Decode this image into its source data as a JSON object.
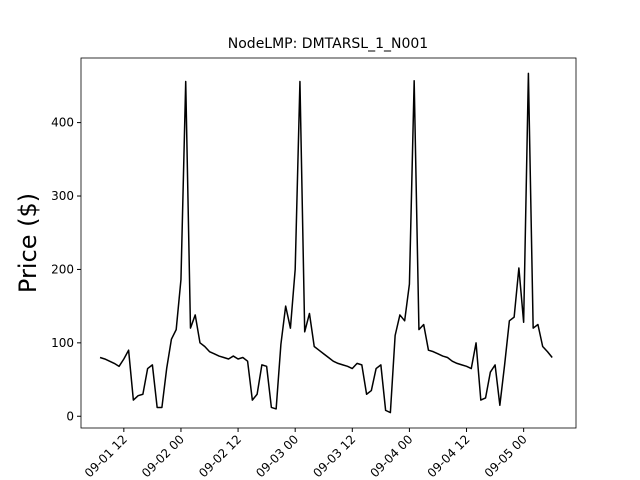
{
  "chart_data": {
    "type": "line",
    "title": "NodeLMP: DMTARSL_1_N001",
    "y_label": "Price ($)",
    "x": [
      "09-01 07",
      "09-01 08",
      "09-01 09",
      "09-01 10",
      "09-01 11",
      "09-01 12",
      "09-01 13",
      "09-01 14",
      "09-01 15",
      "09-01 16",
      "09-01 17",
      "09-01 18",
      "09-01 19",
      "09-01 20",
      "09-01 21",
      "09-01 22",
      "09-01 23",
      "09-02 00",
      "09-02 01",
      "09-02 02",
      "09-02 03",
      "09-02 04",
      "09-02 05",
      "09-02 06",
      "09-02 07",
      "09-02 08",
      "09-02 09",
      "09-02 10",
      "09-02 11",
      "09-02 12",
      "09-02 13",
      "09-02 14",
      "09-02 15",
      "09-02 16",
      "09-02 17",
      "09-02 18",
      "09-02 19",
      "09-02 20",
      "09-02 21",
      "09-02 22",
      "09-02 23",
      "09-03 00",
      "09-03 01",
      "09-03 02",
      "09-03 03",
      "09-03 04",
      "09-03 05",
      "09-03 06",
      "09-03 07",
      "09-03 08",
      "09-03 09",
      "09-03 10",
      "09-03 11",
      "09-03 12",
      "09-03 13",
      "09-03 14",
      "09-03 15",
      "09-03 16",
      "09-03 17",
      "09-03 18",
      "09-03 19",
      "09-03 20",
      "09-03 21",
      "09-03 22",
      "09-03 23",
      "09-04 00",
      "09-04 01",
      "09-04 02",
      "09-04 03",
      "09-04 04",
      "09-04 05",
      "09-04 06",
      "09-04 07",
      "09-04 08",
      "09-04 09",
      "09-04 10",
      "09-04 11",
      "09-04 12",
      "09-04 13",
      "09-04 14",
      "09-04 15",
      "09-04 16",
      "09-04 17",
      "09-04 18",
      "09-04 19",
      "09-04 20",
      "09-04 21",
      "09-04 22",
      "09-04 23",
      "09-05 00",
      "09-05 01",
      "09-05 02",
      "09-05 03",
      "09-05 04",
      "09-05 05",
      "09-05 06"
    ],
    "series": [
      {
        "name": "DMTARSL_1_N001",
        "color": "#000000",
        "values": [
          80,
          78,
          75,
          72,
          68,
          78,
          90,
          22,
          28,
          30,
          65,
          70,
          12,
          12,
          65,
          105,
          118,
          186,
          456,
          120,
          138,
          100,
          95,
          88,
          85,
          82,
          80,
          78,
          82,
          78,
          80,
          75,
          22,
          30,
          70,
          68,
          12,
          10,
          98,
          150,
          120,
          200,
          456,
          115,
          140,
          95,
          90,
          85,
          80,
          75,
          72,
          70,
          68,
          65,
          72,
          70,
          30,
          35,
          65,
          70,
          8,
          5,
          110,
          138,
          130,
          180,
          457,
          118,
          125,
          90,
          88,
          85,
          82,
          80,
          75,
          72,
          70,
          68,
          65,
          100,
          22,
          25,
          60,
          70,
          15,
          70,
          130,
          135,
          202,
          128,
          467,
          120,
          125,
          95,
          88,
          80
        ]
      }
    ],
    "xlim": [
      "09-01 03",
      "09-05 11"
    ],
    "xticks": [
      "09-01 12",
      "09-02 00",
      "09-02 12",
      "09-03 00",
      "09-03 12",
      "09-04 00",
      "09-04 12",
      "09-05 00"
    ],
    "ylim": [
      -16,
      488
    ],
    "yticks": [
      0,
      100,
      200,
      300,
      400
    ],
    "grid": false
  }
}
